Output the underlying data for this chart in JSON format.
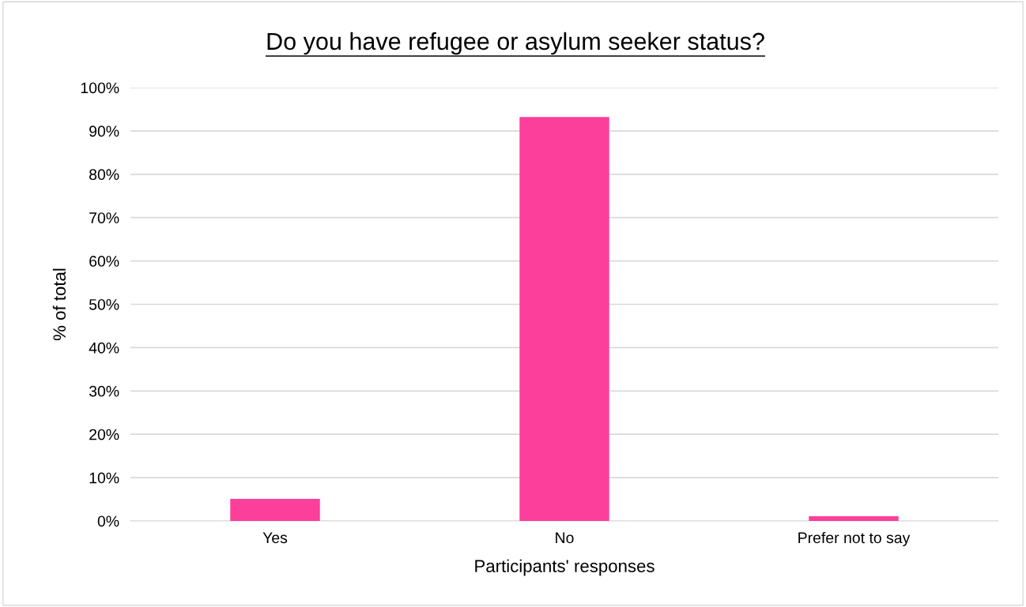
{
  "chart_data": {
    "type": "bar",
    "title": "Do you have refugee or asylum seeker status?",
    "xlabel": "Participants' responses",
    "ylabel": "% of total",
    "categories": [
      "Yes",
      "No",
      "Prefer not to say"
    ],
    "values": [
      5.1,
      93.2,
      1.1
    ],
    "color": "#fc3f9b",
    "ylim": [
      0,
      100
    ],
    "yticks": [
      {
        "value": 0,
        "label": "0%"
      },
      {
        "value": 10,
        "label": "10%"
      },
      {
        "value": 20,
        "label": "20%"
      },
      {
        "value": 30,
        "label": "30%"
      },
      {
        "value": 40,
        "label": "40%"
      },
      {
        "value": 50,
        "label": "50%"
      },
      {
        "value": 60,
        "label": "60%"
      },
      {
        "value": 70,
        "label": "70%"
      },
      {
        "value": 80,
        "label": "80%"
      },
      {
        "value": 90,
        "label": "90%"
      },
      {
        "value": 100,
        "label": "100%"
      }
    ],
    "grid": "y",
    "legend": false
  }
}
